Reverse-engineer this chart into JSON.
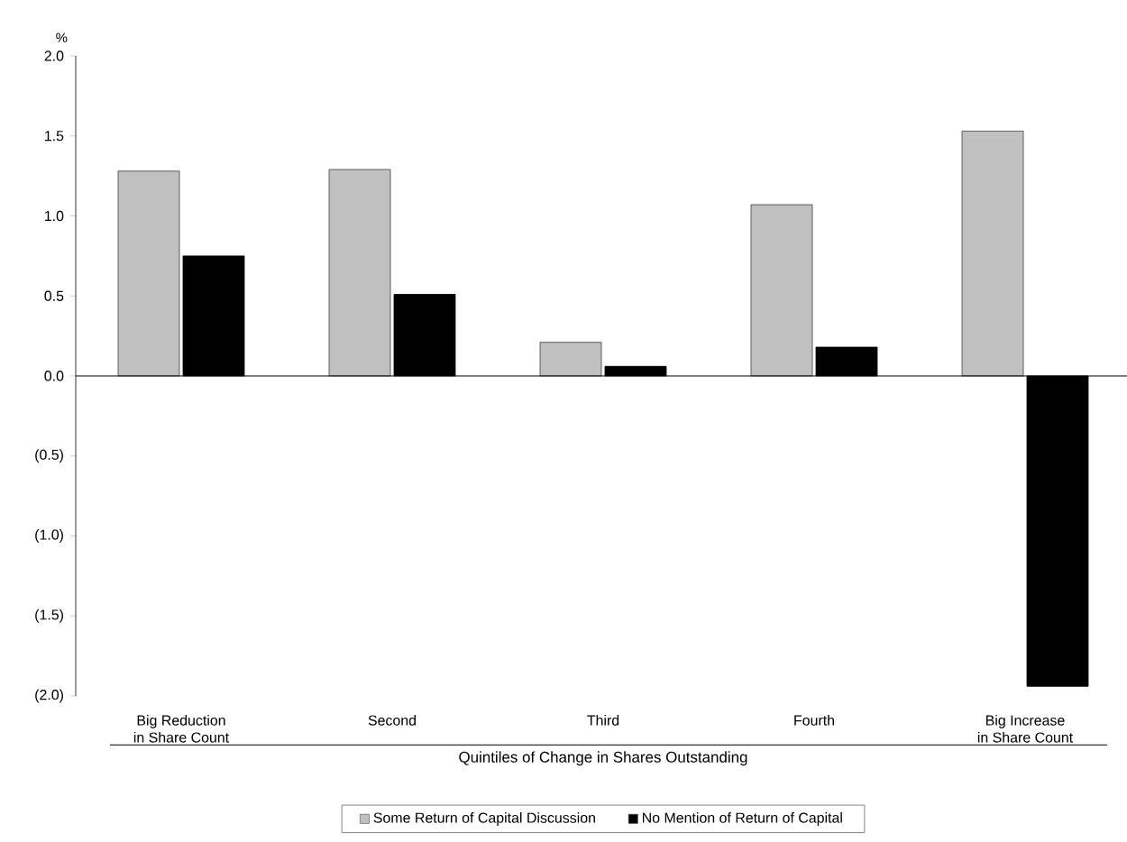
{
  "chart_data": {
    "type": "bar",
    "ylabel": "%",
    "xlabel": "Quintiles of Change in Shares Outstanding",
    "categories": [
      "Big Reduction\nin Share Count",
      "Second",
      "Third",
      "Fourth",
      "Big Increase\nin Share Count"
    ],
    "series": [
      {
        "name": "Some Return of Capital Discussion",
        "color": "#c0c0c0",
        "values": [
          1.28,
          1.29,
          0.21,
          1.07,
          1.53
        ]
      },
      {
        "name": "No Mention of Return of Capital",
        "color": "#000000",
        "values": [
          0.75,
          0.51,
          0.06,
          0.18,
          -1.94
        ]
      }
    ],
    "ylim": [
      -2.0,
      2.0
    ],
    "yticks": [
      {
        "value": -2.0,
        "label": "(2.0)"
      },
      {
        "value": -1.5,
        "label": "(1.5)"
      },
      {
        "value": -1.0,
        "label": "(1.0)"
      },
      {
        "value": -0.5,
        "label": "(0.5)"
      },
      {
        "value": 0,
        "label": "0.0"
      },
      {
        "value": 0.5,
        "label": "0.5"
      },
      {
        "value": 1.0,
        "label": "1.0"
      },
      {
        "value": 1.5,
        "label": "1.5"
      },
      {
        "value": 2.0,
        "label": "2.0"
      }
    ],
    "legend": "bottom"
  }
}
